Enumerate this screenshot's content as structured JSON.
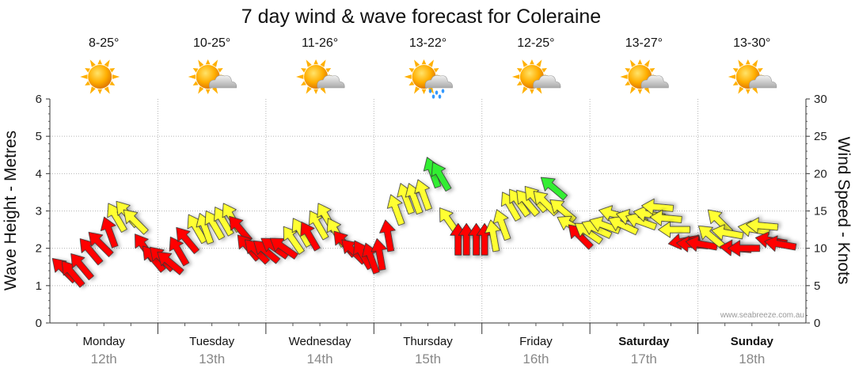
{
  "chart_data": {
    "type": "wind_wave_forecast",
    "title": "7 day wind & wave forecast for Coleraine",
    "ylabel_left": "Wave Height - Metres",
    "ylabel_right": "Wind Speed - Knots",
    "ylim_left": [
      0,
      6
    ],
    "ylim_right": [
      0,
      30
    ],
    "yticks_left": [
      "0",
      "1",
      "2",
      "3",
      "4",
      "5",
      "6"
    ],
    "yticks_right": [
      "0",
      "5",
      "10",
      "15",
      "20",
      "25",
      "30"
    ],
    "grid": true,
    "credit": "www.seabreeze.com.au",
    "colors": {
      "red": "#ff0000",
      "yellow": "#ffff33",
      "green": "#33ee33",
      "sun": "#ffa500",
      "cloud": "#c8c8c8",
      "rain": "#3399ff"
    },
    "days": [
      {
        "name": "Monday",
        "date": "12th",
        "temp": "8-25°",
        "weather": "sunny",
        "bold": false
      },
      {
        "name": "Tuesday",
        "date": "13th",
        "temp": "10-25°",
        "weather": "partly-cloudy",
        "bold": false
      },
      {
        "name": "Wednesday",
        "date": "14th",
        "temp": "11-26°",
        "weather": "partly-cloudy",
        "bold": false
      },
      {
        "name": "Thursday",
        "date": "15th",
        "temp": "13-22°",
        "weather": "showers",
        "bold": false
      },
      {
        "name": "Friday",
        "date": "16th",
        "temp": "12-25°",
        "weather": "partly-cloudy",
        "bold": false
      },
      {
        "name": "Saturday",
        "date": "17th",
        "temp": "13-27°",
        "weather": "partly-cloudy",
        "bold": true
      },
      {
        "name": "Sunday",
        "date": "18th",
        "temp": "13-30°",
        "weather": "partly-cloudy",
        "bold": true
      }
    ],
    "wind_arrows": [
      {
        "t": 0.1,
        "knots": 7.0,
        "dir": 135,
        "color": "red"
      },
      {
        "t": 0.22,
        "knots": 6.5,
        "dir": 140,
        "color": "red"
      },
      {
        "t": 0.35,
        "knots": 7.5,
        "dir": 140,
        "color": "red"
      },
      {
        "t": 0.48,
        "knots": 9.5,
        "dir": 140,
        "color": "red"
      },
      {
        "t": 0.62,
        "knots": 10.5,
        "dir": 135,
        "color": "red"
      },
      {
        "t": 0.75,
        "knots": 12.0,
        "dir": 160,
        "color": "red"
      },
      {
        "t": 0.85,
        "knots": 14.0,
        "dir": 150,
        "color": "yellow"
      },
      {
        "t": 1.0,
        "knots": 14.5,
        "dir": 140,
        "color": "yellow"
      },
      {
        "t": 1.12,
        "knots": 13.5,
        "dir": 135,
        "color": "yellow"
      },
      {
        "t": 1.25,
        "knots": 10.0,
        "dir": 145,
        "color": "red"
      },
      {
        "t": 1.38,
        "knots": 8.5,
        "dir": 140,
        "color": "red"
      },
      {
        "t": 1.5,
        "knots": 8.5,
        "dir": 135,
        "color": "red"
      },
      {
        "t": 1.62,
        "knots": 8.0,
        "dir": 130,
        "color": "red"
      },
      {
        "t": 1.74,
        "knots": 9.5,
        "dir": 150,
        "color": "red"
      },
      {
        "t": 1.86,
        "knots": 11.0,
        "dir": 140,
        "color": "red"
      },
      {
        "t": 2.0,
        "knots": 12.5,
        "dir": 150,
        "color": "yellow"
      },
      {
        "t": 2.12,
        "knots": 12.5,
        "dir": 160,
        "color": "yellow"
      },
      {
        "t": 2.25,
        "knots": 13.0,
        "dir": 150,
        "color": "yellow"
      },
      {
        "t": 2.38,
        "knots": 13.5,
        "dir": 150,
        "color": "yellow"
      },
      {
        "t": 2.5,
        "knots": 14.0,
        "dir": 150,
        "color": "yellow"
      },
      {
        "t": 2.62,
        "knots": 12.5,
        "dir": 140,
        "color": "red"
      },
      {
        "t": 2.74,
        "knots": 10.0,
        "dir": 140,
        "color": "red"
      },
      {
        "t": 2.86,
        "knots": 9.5,
        "dir": 135,
        "color": "red"
      },
      {
        "t": 3.0,
        "knots": 9.5,
        "dir": 130,
        "color": "red"
      },
      {
        "t": 3.12,
        "knots": 10.0,
        "dir": 125,
        "color": "red"
      },
      {
        "t": 3.25,
        "knots": 10.0,
        "dir": 125,
        "color": "red"
      },
      {
        "t": 3.38,
        "knots": 11.0,
        "dir": 145,
        "color": "yellow"
      },
      {
        "t": 3.5,
        "knots": 12.0,
        "dir": 150,
        "color": "yellow"
      },
      {
        "t": 3.62,
        "knots": 11.5,
        "dir": 150,
        "color": "red"
      },
      {
        "t": 3.74,
        "knots": 13.0,
        "dir": 150,
        "color": "yellow"
      },
      {
        "t": 3.86,
        "knots": 14.0,
        "dir": 150,
        "color": "yellow"
      },
      {
        "t": 4.0,
        "knots": 12.0,
        "dir": 150,
        "color": "yellow"
      },
      {
        "t": 4.12,
        "knots": 10.5,
        "dir": 140,
        "color": "red"
      },
      {
        "t": 4.25,
        "knots": 9.5,
        "dir": 135,
        "color": "red"
      },
      {
        "t": 4.38,
        "knots": 9.0,
        "dir": 150,
        "color": "red"
      },
      {
        "t": 4.5,
        "knots": 8.5,
        "dir": 160,
        "color": "red"
      },
      {
        "t": 4.62,
        "knots": 9.0,
        "dir": 170,
        "color": "red"
      },
      {
        "t": 4.74,
        "knots": 11.5,
        "dir": 170,
        "color": "red"
      },
      {
        "t": 4.86,
        "knots": 15.0,
        "dir": 160,
        "color": "yellow"
      },
      {
        "t": 5.0,
        "knots": 16.5,
        "dir": 160,
        "color": "yellow"
      },
      {
        "t": 5.12,
        "knots": 16.5,
        "dir": 160,
        "color": "yellow"
      },
      {
        "t": 5.25,
        "knots": 17.0,
        "dir": 160,
        "color": "yellow"
      },
      {
        "t": 5.38,
        "knots": 20.0,
        "dir": 160,
        "color": "green"
      },
      {
        "t": 5.5,
        "knots": 19.5,
        "dir": 150,
        "color": "green"
      },
      {
        "t": 5.62,
        "knots": 13.5,
        "dir": 145,
        "color": "yellow"
      },
      {
        "t": 5.74,
        "knots": 11.0,
        "dir": 180,
        "color": "red"
      },
      {
        "t": 5.86,
        "knots": 11.0,
        "dir": 180,
        "color": "red"
      },
      {
        "t": 6.0,
        "knots": 11.0,
        "dir": 180,
        "color": "red"
      },
      {
        "t": 6.12,
        "knots": 11.0,
        "dir": 180,
        "color": "red"
      },
      {
        "t": 6.25,
        "knots": 11.5,
        "dir": 170,
        "color": "yellow"
      },
      {
        "t": 6.38,
        "knots": 13.0,
        "dir": 160,
        "color": "yellow"
      },
      {
        "t": 6.5,
        "knots": 15.5,
        "dir": 150,
        "color": "yellow"
      },
      {
        "t": 6.62,
        "knots": 16.0,
        "dir": 145,
        "color": "yellow"
      },
      {
        "t": 6.74,
        "knots": 16.0,
        "dir": 140,
        "color": "yellow"
      },
      {
        "t": 6.86,
        "knots": 16.5,
        "dir": 140,
        "color": "yellow"
      },
      {
        "t": 7.0,
        "knots": 16.0,
        "dir": 135,
        "color": "yellow"
      },
      {
        "t": 7.12,
        "knots": 18.0,
        "dir": 130,
        "color": "green"
      },
      {
        "t": 7.25,
        "knots": 15.0,
        "dir": 130,
        "color": "yellow"
      },
      {
        "t": 7.38,
        "knots": 13.0,
        "dir": 120,
        "color": "yellow"
      },
      {
        "t": 7.5,
        "knots": 11.5,
        "dir": 135,
        "color": "red"
      },
      {
        "t": 7.62,
        "knots": 12.0,
        "dir": 125,
        "color": "yellow"
      },
      {
        "t": 7.74,
        "knots": 12.5,
        "dir": 115,
        "color": "yellow"
      },
      {
        "t": 7.86,
        "knots": 13.0,
        "dir": 110,
        "color": "yellow"
      },
      {
        "t": 8.0,
        "knots": 14.5,
        "dir": 105,
        "color": "yellow"
      },
      {
        "t": 8.12,
        "knots": 13.0,
        "dir": 115,
        "color": "yellow"
      },
      {
        "t": 8.25,
        "knots": 14.0,
        "dir": 105,
        "color": "yellow"
      },
      {
        "t": 8.38,
        "knots": 13.5,
        "dir": 110,
        "color": "yellow"
      },
      {
        "t": 8.5,
        "knots": 14.5,
        "dir": 100,
        "color": "yellow"
      },
      {
        "t": 8.62,
        "knots": 15.5,
        "dir": 95,
        "color": "yellow"
      },
      {
        "t": 8.74,
        "knots": 14.0,
        "dir": 95,
        "color": "yellow"
      },
      {
        "t": 8.86,
        "knots": 12.5,
        "dir": 90,
        "color": "yellow"
      },
      {
        "t": 9.0,
        "knots": 11.0,
        "dir": 80,
        "color": "red"
      },
      {
        "t": 9.12,
        "knots": 10.5,
        "dir": 95,
        "color": "red"
      },
      {
        "t": 9.25,
        "knots": 10.5,
        "dir": 100,
        "color": "red"
      },
      {
        "t": 9.38,
        "knots": 11.5,
        "dir": 130,
        "color": "yellow"
      },
      {
        "t": 9.5,
        "knots": 13.5,
        "dir": 135,
        "color": "yellow"
      },
      {
        "t": 9.62,
        "knots": 12.0,
        "dir": 100,
        "color": "yellow"
      },
      {
        "t": 9.74,
        "knots": 10.0,
        "dir": 95,
        "color": "red"
      },
      {
        "t": 9.86,
        "knots": 10.0,
        "dir": 90,
        "color": "red"
      },
      {
        "t": 10.0,
        "knots": 12.5,
        "dir": 100,
        "color": "yellow"
      },
      {
        "t": 10.12,
        "knots": 13.0,
        "dir": 95,
        "color": "yellow"
      },
      {
        "t": 10.25,
        "knots": 11.0,
        "dir": 100,
        "color": "red"
      },
      {
        "t": 10.38,
        "knots": 10.5,
        "dir": 100,
        "color": "red"
      }
    ]
  }
}
